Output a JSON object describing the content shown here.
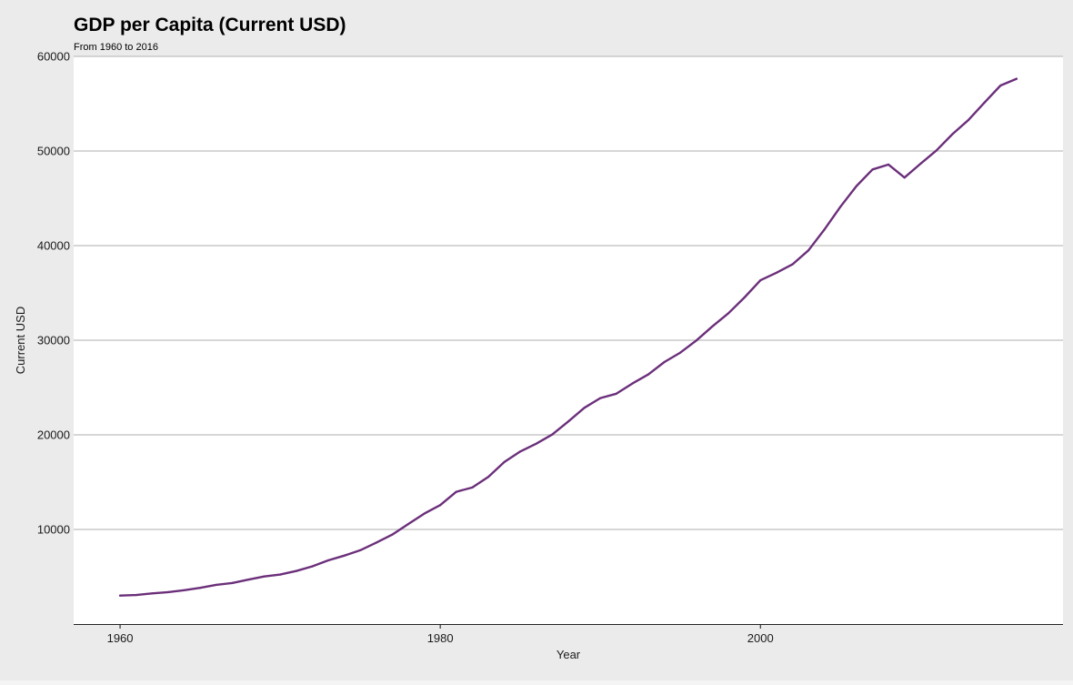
{
  "chart_data": {
    "type": "line",
    "title": "GDP per Capita (Current USD)",
    "subtitle": "From 1960 to 2016",
    "xlabel": "Year",
    "ylabel": "Current USD",
    "xlim": [
      1957.1,
      2018.9
    ],
    "ylim": [
      0,
      60000
    ],
    "x_ticks": [
      1960,
      1980,
      2000
    ],
    "x_tick_labels": [
      "1960",
      "1980",
      "2000"
    ],
    "y_ticks": [
      10000,
      20000,
      30000,
      40000,
      50000,
      60000
    ],
    "y_tick_labels": [
      "10000",
      "20000",
      "30000",
      "40000",
      "50000",
      "60000"
    ],
    "grid": true,
    "legend": "none",
    "colors": {
      "line": "#6b2f7a",
      "panel": "#ffffff",
      "background": "#ebebeb",
      "grid": "#c8c8c8"
    },
    "series": [
      {
        "x": [
          1960,
          1961,
          1962,
          1963,
          1964,
          1965,
          1966,
          1967,
          1968,
          1969,
          1970,
          1971,
          1972,
          1973,
          1974,
          1975,
          1976,
          1977,
          1978,
          1979,
          1980,
          1981,
          1982,
          1983,
          1984,
          1985,
          1986,
          1987,
          1988,
          1989,
          1990,
          1991,
          1992,
          1993,
          1994,
          1995,
          1996,
          1997,
          1998,
          1999,
          2000,
          2001,
          2002,
          2003,
          2004,
          2005,
          2006,
          2007,
          2008,
          2009,
          2010,
          2011,
          2012,
          2013,
          2014,
          2015,
          2016
        ],
        "values": [
          3007,
          3067,
          3244,
          3375,
          3574,
          3828,
          4146,
          4336,
          4696,
          5032,
          5234,
          5609,
          6095,
          6726,
          7226,
          7801,
          8592,
          9453,
          10565,
          11674,
          12575,
          13976,
          14434,
          15544,
          17121,
          18237,
          19071,
          20039,
          21417,
          22857,
          23889,
          24342,
          25419,
          26387,
          27695,
          28691,
          29968,
          31459,
          32854,
          34515,
          36335,
          37133,
          38023,
          39496,
          41713,
          44115,
          46299,
          48050,
          48570,
          47195,
          48651,
          50066,
          51784,
          53291,
          55124,
          56923,
          57638
        ]
      }
    ]
  }
}
